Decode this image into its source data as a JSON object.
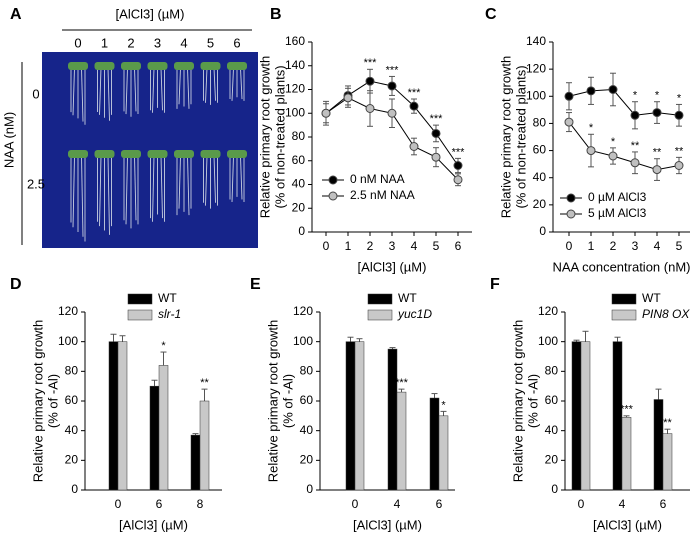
{
  "photo": {
    "panel": "A",
    "title": "[AlCl3] (µM)",
    "columns": [
      "0",
      "1",
      "2",
      "3",
      "4",
      "5",
      "6"
    ],
    "row_axis": "NAA (nM)",
    "rows": [
      "0",
      "2.5"
    ]
  },
  "chart_data": [
    {
      "type": "line",
      "panel": "B",
      "categories": [
        "0",
        "1",
        "2",
        "3",
        "4",
        "5",
        "6"
      ],
      "x_label": "[AlCl3] (µM)",
      "y_label": [
        "Relative primary root growth",
        "(% of non-treated plants)"
      ],
      "ylim": [
        0,
        160
      ],
      "yticks": [
        0,
        20,
        40,
        60,
        80,
        100,
        120,
        140,
        160
      ],
      "legend": "lower left",
      "series": [
        {
          "name": "0 nM NAA",
          "color": "#000000",
          "values": [
            100,
            115,
            127,
            123,
            106,
            83,
            56
          ],
          "errors": [
            10,
            8,
            10,
            8,
            6,
            7,
            6
          ],
          "significance": [
            null,
            null,
            "***",
            "***",
            "***",
            "***",
            "***"
          ]
        },
        {
          "name": "2.5 nM NAA",
          "color": "#c0c0c0",
          "values": [
            100,
            113,
            104,
            100,
            72,
            63,
            44
          ],
          "errors": [
            8,
            8,
            15,
            12,
            7,
            8,
            5
          ],
          "significance": [
            null,
            null,
            null,
            null,
            null,
            null,
            null
          ]
        }
      ]
    },
    {
      "type": "line",
      "panel": "C",
      "categories": [
        "0",
        "1",
        "2",
        "3",
        "4",
        "5"
      ],
      "x_label": "NAA concentration (nM)",
      "y_label": [
        "Relative primary root growth",
        "(% of non-treated plants)"
      ],
      "ylim": [
        0,
        140
      ],
      "yticks": [
        0,
        20,
        40,
        60,
        80,
        100,
        120,
        140
      ],
      "legend": "lower left",
      "series": [
        {
          "name": "0 µM AlCl3",
          "color": "#000000",
          "values": [
            100,
            104,
            105,
            86,
            88,
            86
          ],
          "errors": [
            10,
            10,
            12,
            10,
            8,
            8
          ],
          "significance": [
            null,
            null,
            null,
            "*",
            "*",
            "*"
          ]
        },
        {
          "name": "5 µM AlCl3",
          "color": "#c0c0c0",
          "values": [
            81,
            60,
            56,
            51,
            46,
            49
          ],
          "errors": [
            7,
            12,
            6,
            8,
            8,
            6
          ],
          "significance": [
            null,
            "*",
            "*",
            "**",
            "**",
            "**"
          ]
        }
      ]
    },
    {
      "type": "bar",
      "panel": "D",
      "categories": [
        "0",
        "6",
        "8"
      ],
      "x_label": "[AlCl3] (µM)",
      "y_label": [
        "Relative primary root growth",
        "(% of -Al)"
      ],
      "ylim": [
        0,
        120
      ],
      "yticks": [
        0,
        20,
        40,
        60,
        80,
        100,
        120
      ],
      "legend": "upper right",
      "series": [
        {
          "name": "WT",
          "color": "#000000",
          "values": [
            100,
            70,
            37
          ],
          "errors": [
            5,
            4,
            1
          ],
          "significance": [
            null,
            null,
            null
          ]
        },
        {
          "name": "slr-1",
          "color": "#c8c8c8",
          "values": [
            100,
            84,
            60
          ],
          "errors": [
            4,
            9,
            8
          ],
          "significance": [
            null,
            "*",
            "**"
          ]
        }
      ]
    },
    {
      "type": "bar",
      "panel": "E",
      "categories": [
        "0",
        "4",
        "6"
      ],
      "x_label": "[AlCl3] (µM)",
      "y_label": [
        "Relative primary root growth",
        "(% of -Al)"
      ],
      "ylim": [
        0,
        120
      ],
      "yticks": [
        0,
        20,
        40,
        60,
        80,
        100,
        120
      ],
      "legend": "upper right",
      "series": [
        {
          "name": "WT",
          "color": "#000000",
          "values": [
            100,
            95,
            62
          ],
          "errors": [
            3,
            1,
            3
          ],
          "significance": [
            null,
            null,
            null
          ]
        },
        {
          "name": "yuc1D",
          "color": "#c8c8c8",
          "values": [
            100,
            66,
            50
          ],
          "errors": [
            2,
            2,
            3
          ],
          "significance": [
            null,
            "***",
            "*"
          ]
        }
      ]
    },
    {
      "type": "bar",
      "panel": "F",
      "categories": [
        "0",
        "4",
        "6"
      ],
      "x_label": "[AlCl3] (µM)",
      "y_label": [
        "Relative primary root growth",
        "(% of -Al)"
      ],
      "ylim": [
        0,
        120
      ],
      "yticks": [
        0,
        20,
        40,
        60,
        80,
        100,
        120
      ],
      "legend": "upper right",
      "series": [
        {
          "name": "WT",
          "color": "#000000",
          "values": [
            100,
            100,
            61
          ],
          "errors": [
            1,
            3,
            7
          ],
          "significance": [
            null,
            null,
            null
          ]
        },
        {
          "name": "PIN8 OX",
          "color": "#c8c8c8",
          "values": [
            100,
            49,
            38
          ],
          "errors": [
            7,
            1,
            3
          ],
          "significance": [
            null,
            "***",
            "**"
          ]
        }
      ]
    }
  ]
}
